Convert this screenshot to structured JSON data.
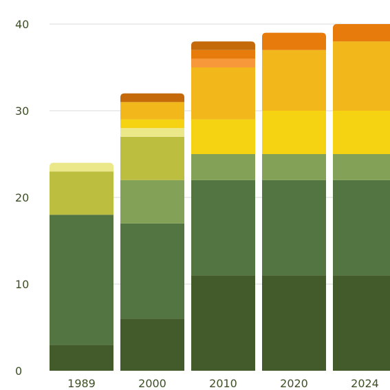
{
  "chart_data": {
    "type": "bar",
    "stacked": true,
    "title": "",
    "xlabel": "",
    "ylabel": "",
    "ylim": [
      0,
      40
    ],
    "yticks": [
      0,
      10,
      20,
      30,
      40
    ],
    "grid": true,
    "categories": [
      "1989",
      "2000",
      "2010",
      "2020",
      "2024"
    ],
    "series": [
      {
        "color": "#435a2a",
        "values": [
          3,
          6,
          11,
          11,
          11
        ]
      },
      {
        "color": "#527542",
        "values": [
          15,
          11,
          11,
          11,
          11
        ]
      },
      {
        "color": "#84a257",
        "values": [
          0,
          5,
          3,
          3,
          3
        ]
      },
      {
        "color": "#bcbe3f",
        "values": [
          5,
          5,
          0,
          0,
          0
        ]
      },
      {
        "color": "#ebe88a",
        "values": [
          1,
          1,
          0,
          0,
          0
        ]
      },
      {
        "color": "#f6d312",
        "values": [
          0,
          1,
          4,
          5,
          5
        ]
      },
      {
        "color": "#f2b81b",
        "values": [
          0,
          2,
          6,
          7,
          8
        ]
      },
      {
        "color": "#f7993a",
        "values": [
          0,
          0,
          1,
          0,
          0
        ]
      },
      {
        "color": "#e77b0b",
        "values": [
          0,
          0,
          1,
          2,
          2
        ]
      },
      {
        "color": "#c46a0a",
        "values": [
          0,
          1,
          1,
          0,
          0
        ]
      }
    ]
  }
}
